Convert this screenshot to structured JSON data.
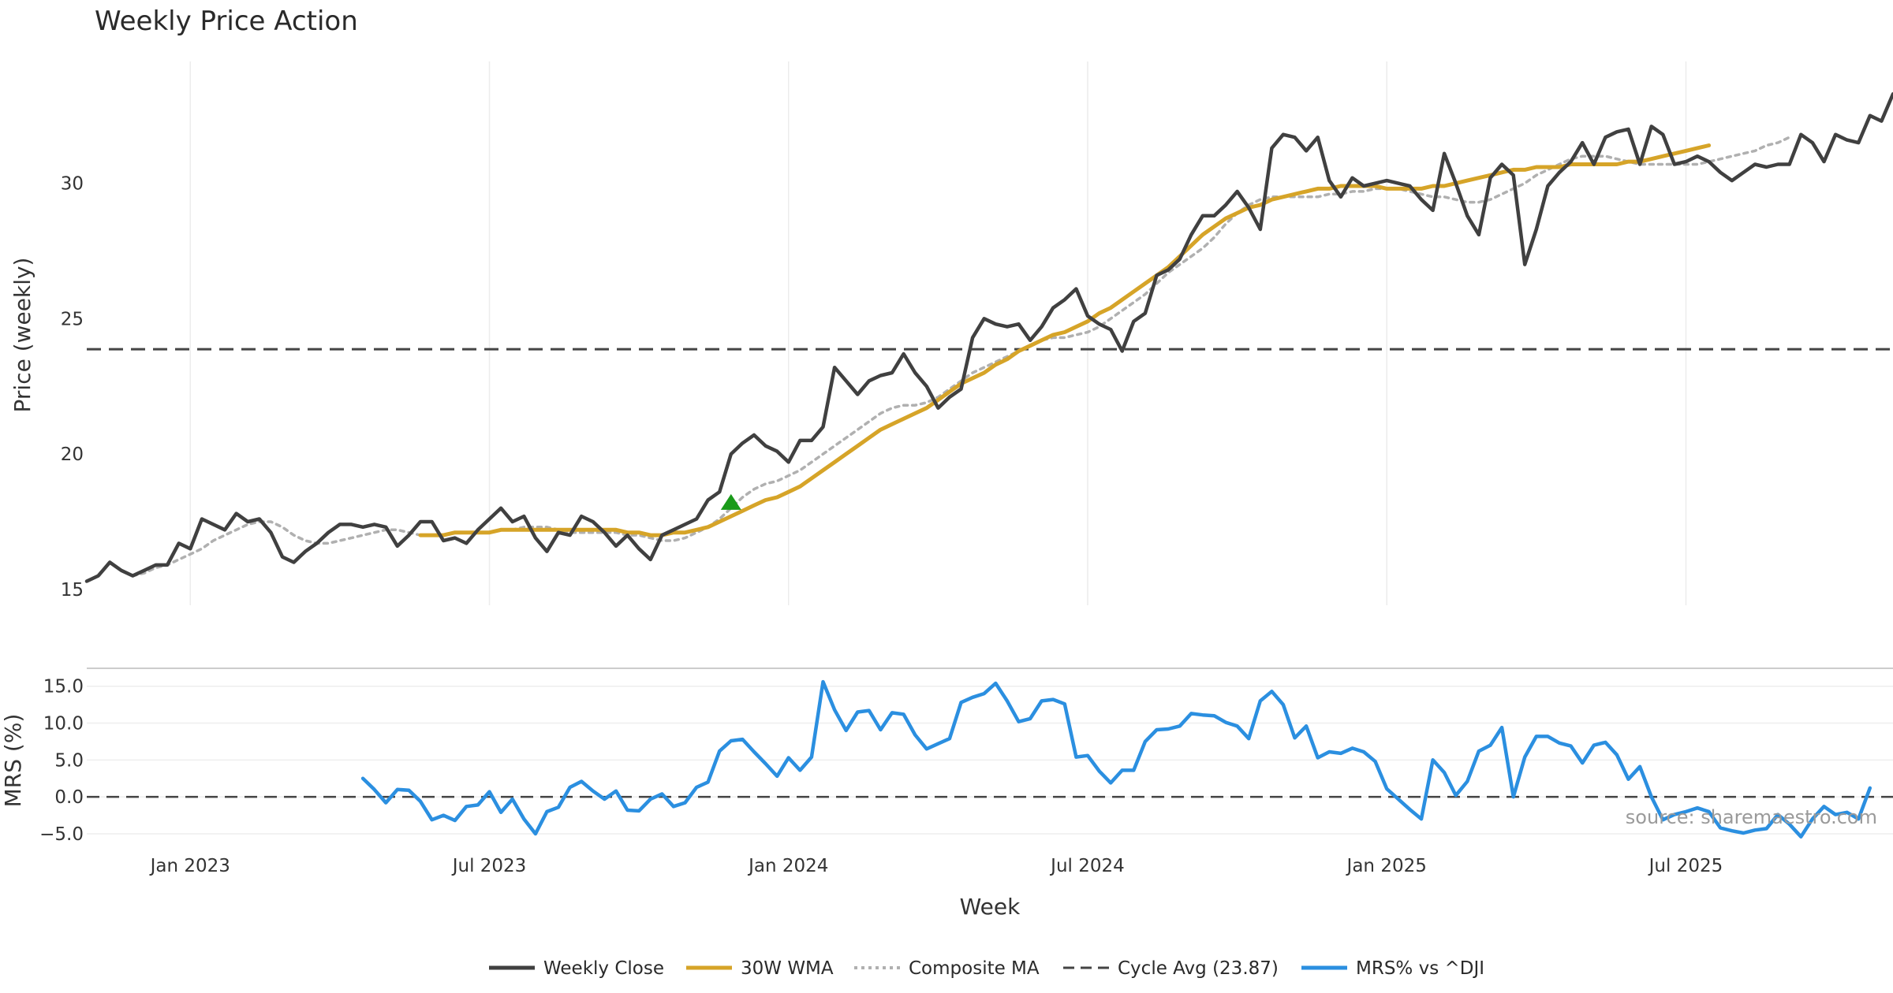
{
  "chart_data": {
    "title": "Weekly Price Action",
    "type": "line",
    "xlabel": "Week",
    "x_tick_labels": [
      "Jan 2023",
      "Jul 2023",
      "Jan 2024",
      "Jul 2024",
      "Jan 2025",
      "Jul 2025"
    ],
    "x_range": [
      "2022-11",
      "2025-12"
    ],
    "panels": [
      {
        "name": "price",
        "ylabel": "Price (weekly)",
        "ylim": [
          14.5,
          34.5
        ],
        "y_ticks": [
          "15",
          "20",
          "25",
          "30"
        ],
        "reference_line": {
          "label": "Cycle Avg (23.87)",
          "value": 23.87
        },
        "series": [
          {
            "name": "Weekly Close",
            "color": "#404040",
            "style": "solid",
            "values": [
              15.3,
              15.5,
              16.0,
              15.7,
              15.5,
              15.7,
              15.9,
              15.9,
              16.7,
              16.5,
              17.6,
              17.4,
              17.2,
              17.8,
              17.5,
              17.6,
              17.1,
              16.2,
              16.0,
              16.4,
              16.7,
              17.1,
              17.4,
              17.4,
              17.3,
              17.4,
              17.3,
              16.6,
              17.0,
              17.5,
              17.5,
              16.8,
              16.9,
              16.7,
              17.2,
              17.6,
              18.0,
              17.5,
              17.7,
              16.9,
              16.4,
              17.1,
              17.0,
              17.7,
              17.5,
              17.1,
              16.6,
              17.0,
              16.5,
              16.1,
              17.0,
              17.2,
              17.4,
              17.6,
              18.3,
              18.6,
              20.0,
              20.4,
              20.7,
              20.3,
              20.1,
              19.7,
              20.5,
              20.5,
              21.0,
              23.2,
              22.7,
              22.2,
              22.7,
              22.9,
              23.0,
              23.7,
              23.0,
              22.5,
              21.7,
              22.1,
              22.4,
              24.3,
              25.0,
              24.8,
              24.7,
              24.8,
              24.2,
              24.7,
              25.4,
              25.7,
              26.1,
              25.1,
              24.8,
              24.6,
              23.8,
              24.9,
              25.2,
              26.6,
              26.8,
              27.2,
              28.1,
              28.8,
              28.8,
              29.2,
              29.7,
              29.1,
              28.3,
              31.3,
              31.8,
              31.7,
              31.2,
              31.7,
              30.1,
              29.5,
              30.2,
              29.9,
              30.0,
              30.1,
              30.0,
              29.9,
              29.4,
              29.0,
              31.1,
              30.0,
              28.8,
              28.1,
              30.2,
              30.7,
              30.3,
              27.0,
              28.3,
              29.9,
              30.4,
              30.8,
              31.5,
              30.7,
              31.7,
              31.9,
              32.0,
              30.7,
              32.1,
              31.8,
              30.7,
              30.8,
              31.0,
              30.8,
              30.4,
              30.1,
              30.4,
              30.7,
              30.6,
              30.7,
              30.7,
              31.8,
              31.5,
              30.8,
              31.8,
              31.6,
              31.5,
              32.5,
              32.3,
              33.3
            ]
          },
          {
            "name": "30W WMA",
            "color": "#d6a428",
            "style": "solid",
            "start_index": 29,
            "values": [
              17.0,
              17.0,
              17.0,
              17.1,
              17.1,
              17.1,
              17.1,
              17.2,
              17.2,
              17.2,
              17.2,
              17.2,
              17.2,
              17.2,
              17.2,
              17.2,
              17.2,
              17.2,
              17.1,
              17.1,
              17.0,
              17.0,
              17.1,
              17.1,
              17.2,
              17.3,
              17.5,
              17.7,
              17.9,
              18.1,
              18.3,
              18.4,
              18.6,
              18.8,
              19.1,
              19.4,
              19.7,
              20.0,
              20.3,
              20.6,
              20.9,
              21.1,
              21.3,
              21.5,
              21.7,
              22.0,
              22.3,
              22.6,
              22.8,
              23.0,
              23.3,
              23.5,
              23.8,
              24.0,
              24.2,
              24.4,
              24.5,
              24.7,
              24.9,
              25.2,
              25.4,
              25.7,
              26.0,
              26.3,
              26.6,
              26.9,
              27.3,
              27.7,
              28.1,
              28.4,
              28.7,
              28.9,
              29.1,
              29.2,
              29.4,
              29.5,
              29.6,
              29.7,
              29.8,
              29.8,
              29.9,
              29.9,
              29.9,
              29.9,
              29.8,
              29.8,
              29.8,
              29.8,
              29.9,
              29.9,
              30.0,
              30.1,
              30.2,
              30.3,
              30.4,
              30.5,
              30.5,
              30.6,
              30.6,
              30.6,
              30.7,
              30.7,
              30.7,
              30.7,
              30.7,
              30.8,
              30.8,
              30.9,
              31.0,
              31.1,
              31.2,
              31.3,
              31.4
            ]
          },
          {
            "name": "Composite MA",
            "color": "#b0b0b0",
            "style": "dotted",
            "start_index": 4,
            "values": [
              15.5,
              15.6,
              15.8,
              15.9,
              16.1,
              16.3,
              16.5,
              16.8,
              17.0,
              17.2,
              17.4,
              17.5,
              17.5,
              17.3,
              17.0,
              16.8,
              16.7,
              16.7,
              16.8,
              16.9,
              17.0,
              17.1,
              17.2,
              17.2,
              17.1,
              17.0,
              17.0,
              17.0,
              17.1,
              17.1,
              17.1,
              17.1,
              17.2,
              17.2,
              17.3,
              17.3,
              17.3,
              17.2,
              17.1,
              17.1,
              17.1,
              17.1,
              17.1,
              17.0,
              17.0,
              16.9,
              16.8,
              16.8,
              16.9,
              17.1,
              17.3,
              17.6,
              18.0,
              18.4,
              18.7,
              18.9,
              19.0,
              19.2,
              19.4,
              19.7,
              20.0,
              20.3,
              20.6,
              20.9,
              21.2,
              21.5,
              21.7,
              21.8,
              21.8,
              21.9,
              22.1,
              22.4,
              22.7,
              23.0,
              23.2,
              23.4,
              23.6,
              23.8,
              24.0,
              24.2,
              24.3,
              24.3,
              24.4,
              24.5,
              24.7,
              25.0,
              25.3,
              25.6,
              25.9,
              26.3,
              26.7,
              27.0,
              27.3,
              27.6,
              28.0,
              28.5,
              28.9,
              29.2,
              29.4,
              29.5,
              29.5,
              29.5,
              29.5,
              29.5,
              29.6,
              29.6,
              29.7,
              29.7,
              29.8,
              29.8,
              29.8,
              29.7,
              29.6,
              29.5,
              29.5,
              29.4,
              29.3,
              29.3,
              29.4,
              29.6,
              29.8,
              30.0,
              30.3,
              30.5,
              30.7,
              30.9,
              31.0,
              31.0,
              31.0,
              30.9,
              30.8,
              30.7,
              30.7,
              30.7,
              30.7,
              30.7,
              30.7,
              30.8,
              30.9,
              31.0,
              31.1,
              31.2,
              31.4,
              31.5,
              31.7
            ]
          }
        ],
        "annotations": [
          {
            "type": "buy-signal-marker",
            "index": 56,
            "value": 18.2,
            "color": "#1a9a1a"
          }
        ]
      },
      {
        "name": "mrs",
        "ylabel": "MRS (%)",
        "ylim": [
          -6.5,
          17.0
        ],
        "y_ticks": [
          "15.0",
          "10.0",
          "5.0",
          "0.0",
          "−5.0"
        ],
        "reference_value": 0.0,
        "series": [
          {
            "name": "MRS% vs ^DJI",
            "color": "#2b8fe0",
            "style": "solid",
            "start_index": 24,
            "values": [
              2.5,
              1.0,
              -0.8,
              1.0,
              0.9,
              -0.6,
              -3.1,
              -2.5,
              -3.2,
              -1.3,
              -1.1,
              0.7,
              -2.1,
              -0.3,
              -3.0,
              -5.0,
              -2.0,
              -1.4,
              1.3,
              2.1,
              0.8,
              -0.3,
              0.8,
              -1.8,
              -1.9,
              -0.3,
              0.4,
              -1.3,
              -0.8,
              1.3,
              2.0,
              6.2,
              7.6,
              7.8,
              6.1,
              4.5,
              2.8,
              5.3,
              3.6,
              5.4,
              15.6,
              11.8,
              9.0,
              11.5,
              11.7,
              9.1,
              11.4,
              11.2,
              8.4,
              6.5,
              7.2,
              7.9,
              12.8,
              13.5,
              14.0,
              15.4,
              13.0,
              10.2,
              10.6,
              13.0,
              13.2,
              12.6,
              5.4,
              5.6,
              3.5,
              1.9,
              3.6,
              3.6,
              7.5,
              9.1,
              9.2,
              9.6,
              11.3,
              11.1,
              11.0,
              10.1,
              9.6,
              7.9,
              13.0,
              14.3,
              12.5,
              8.0,
              9.6,
              5.3,
              6.1,
              5.9,
              6.6,
              6.1,
              4.8,
              1.1,
              -0.3,
              -1.7,
              -3.0,
              5.0,
              3.3,
              0.2,
              2.1,
              6.2,
              7.0,
              9.4,
              0.0,
              5.4,
              8.2,
              8.2,
              7.3,
              6.9,
              4.6,
              7.0,
              7.4,
              5.7,
              2.4,
              4.1,
              0.0,
              -3.1,
              -2.4,
              -2.0,
              -1.5,
              -2.0,
              -4.2,
              -4.6,
              -4.9,
              -4.5,
              -4.3,
              -2.4,
              -3.7,
              -5.4,
              -3.0,
              -1.3,
              -2.4,
              -2.1,
              -3.0,
              1.2
            ]
          }
        ]
      }
    ],
    "legend": {
      "position": "bottom-center",
      "entries": [
        "Weekly Close",
        "30W WMA",
        "Composite MA",
        "Cycle Avg (23.87)",
        "MRS% vs ^DJI"
      ]
    },
    "source_text": "source: sharemaestro.com"
  }
}
